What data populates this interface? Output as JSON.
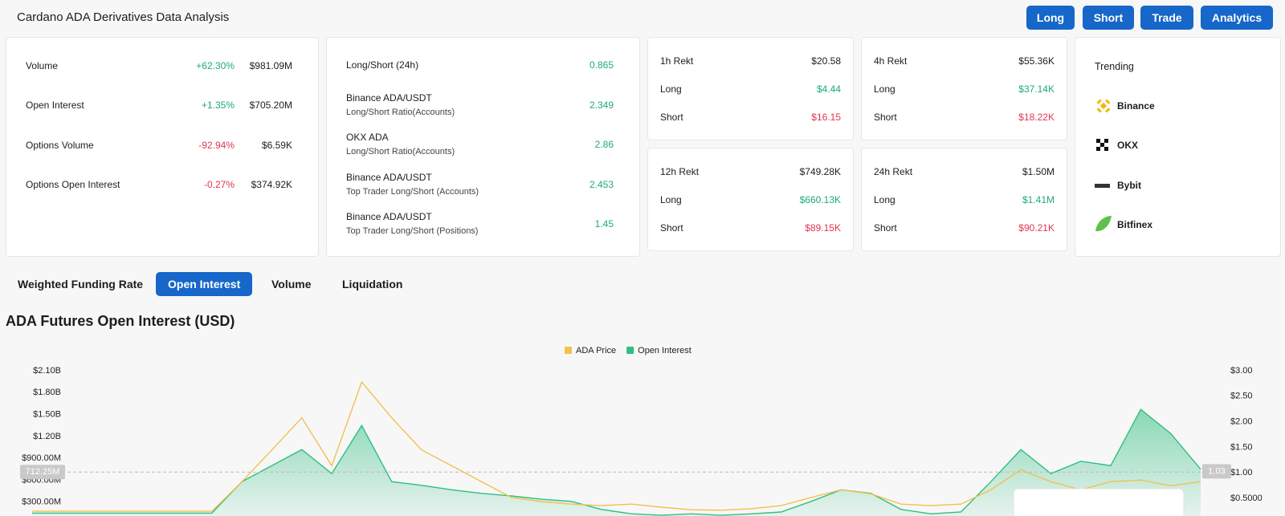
{
  "header": {
    "title": "Cardano ADA Derivatives Data Analysis",
    "buttons": [
      "Long",
      "Short",
      "Trade",
      "Analytics"
    ]
  },
  "metrics": [
    {
      "label": "Volume",
      "change": "+62.30%",
      "value": "$981.09M"
    },
    {
      "label": "Open Interest",
      "change": "+1.35%",
      "value": "$705.20M"
    },
    {
      "label": "Options Volume",
      "change": "-92.94%",
      "value": "$6.59K"
    },
    {
      "label": "Options Open Interest",
      "change": "-0.27%",
      "value": "$374.92K"
    }
  ],
  "ratios": [
    {
      "label": "Long/Short (24h)",
      "value": "0.865"
    },
    {
      "label": "Binance ADA/USDT",
      "sublabel": "Long/Short Ratio(Accounts)",
      "value": "2.349"
    },
    {
      "label": "OKX ADA",
      "sublabel": "Long/Short Ratio(Accounts)",
      "value": "2.86"
    },
    {
      "label": "Binance ADA/USDT",
      "sublabel": "Top Trader Long/Short (Accounts)",
      "value": "2.453"
    },
    {
      "label": "Binance ADA/USDT",
      "sublabel": "Top Trader Long/Short (Positions)",
      "value": "1.45"
    }
  ],
  "rekt": [
    [
      {
        "label": "1h Rekt",
        "value": "$20.58"
      },
      {
        "label": "Long",
        "value": "$4.44"
      },
      {
        "label": "Short",
        "value": "$16.15"
      }
    ],
    [
      {
        "label": "4h Rekt",
        "value": "$55.36K"
      },
      {
        "label": "Long",
        "value": "$37.14K"
      },
      {
        "label": "Short",
        "value": "$18.22K"
      }
    ],
    [
      {
        "label": "12h Rekt",
        "value": "$749.28K"
      },
      {
        "label": "Long",
        "value": "$660.13K"
      },
      {
        "label": "Short",
        "value": "$89.15K"
      }
    ],
    [
      {
        "label": "24h Rekt",
        "value": "$1.50M"
      },
      {
        "label": "Long",
        "value": "$1.41M"
      },
      {
        "label": "Short",
        "value": "$90.21K"
      }
    ]
  ],
  "trending": {
    "title": "Trending",
    "items": [
      "Binance",
      "OKX",
      "Bybit",
      "Bitfinex"
    ]
  },
  "tabs": {
    "items": [
      "Weighted Funding Rate",
      "Open Interest",
      "Volume",
      "Liquidation"
    ],
    "active": 1
  },
  "chart_data": {
    "type": "line",
    "title": "ADA Futures Open Interest (USD)",
    "categories": [
      null,
      null,
      null,
      null,
      null,
      null,
      null,
      null,
      null,
      null,
      null,
      null,
      null,
      null,
      null,
      null,
      null,
      null,
      null,
      null,
      null,
      null,
      null,
      null,
      null,
      null,
      null,
      null,
      null,
      null,
      null,
      null,
      null,
      null,
      null,
      null,
      null,
      null,
      null,
      null
    ],
    "series": [
      {
        "name": "ADA Price",
        "color": "#f2c14e",
        "axis": "y2",
        "values": [
          0.25,
          0.25,
          0.25,
          0.25,
          0.25,
          0.25,
          0.25,
          0.83,
          1.45,
          2.08,
          1.14,
          2.78,
          2.08,
          1.45,
          1.14,
          0.83,
          0.52,
          0.44,
          0.39,
          0.36,
          0.39,
          0.33,
          0.28,
          0.27,
          0.3,
          0.36,
          0.52,
          0.67,
          0.59,
          0.39,
          0.36,
          0.39,
          0.67,
          1.06,
          0.83,
          0.67,
          0.83,
          0.86,
          0.75,
          0.83
        ]
      },
      {
        "name": "Open Interest",
        "color": "#2fbf7f",
        "area": true,
        "values": [
          150,
          150,
          150,
          150,
          150,
          150,
          150,
          580,
          800,
          1020,
          690,
          1350,
          580,
          530,
          470,
          420,
          385,
          340,
          310,
          200,
          140,
          120,
          140,
          120,
          140,
          165,
          310,
          470,
          420,
          200,
          140,
          165,
          580,
          1020,
          690,
          860,
          800,
          1570,
          1240,
          750
        ]
      }
    ],
    "ylim": [
      0,
      2100
    ],
    "yticks": [
      {
        "value": 300,
        "label": "$300.00M"
      },
      {
        "value": 600,
        "label": "$600.00M"
      },
      {
        "value": 900,
        "label": "$900.00M"
      },
      {
        "value": 1200,
        "label": "$1.20B"
      },
      {
        "value": 1500,
        "label": "$1.50B"
      },
      {
        "value": 1800,
        "label": "$1.80B"
      },
      {
        "value": 2100,
        "label": "$2.10B"
      }
    ],
    "y2lim": [
      0,
      3
    ],
    "y2ticks": [
      {
        "value": 0.5,
        "label": "$0.5000"
      },
      {
        "value": 1,
        "label": "$1.00"
      },
      {
        "value": 1.5,
        "label": "$1.50"
      },
      {
        "value": 2,
        "label": "$2.00"
      },
      {
        "value": 2.5,
        "label": "$2.50"
      },
      {
        "value": 3,
        "label": "$3.00"
      }
    ],
    "grid": false,
    "legend": "top",
    "crosshair": {
      "y": {
        "value": 712.25,
        "label": "712.25M"
      },
      "y2": {
        "value": 1.03,
        "label": "1.03"
      }
    }
  }
}
